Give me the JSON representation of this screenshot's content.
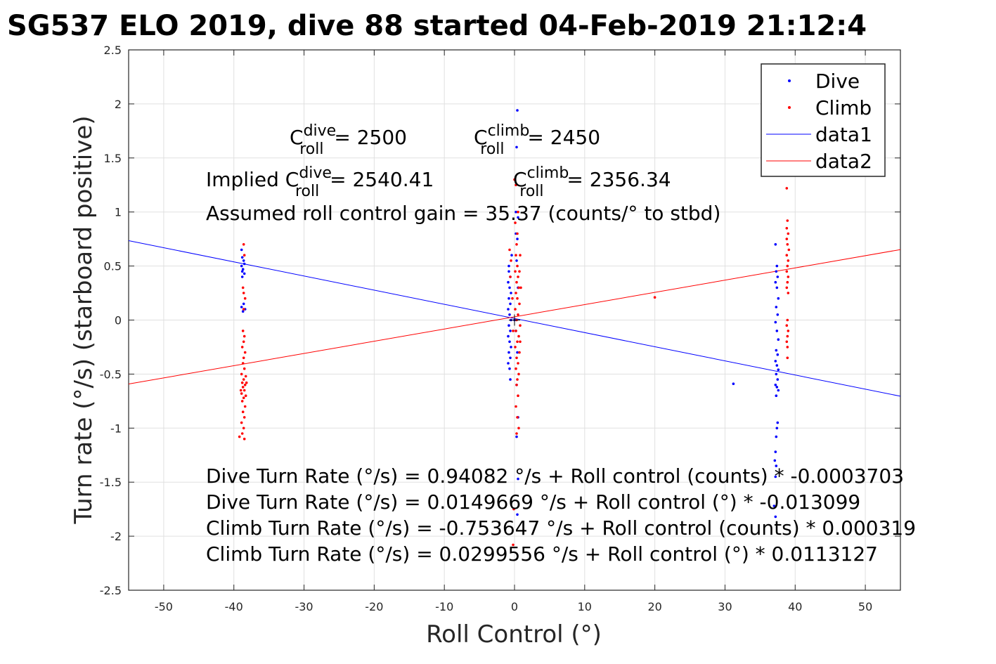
{
  "title": "SG537 ELO 2019, dive 88 started 04-Feb-2019 21:12:4",
  "chart_data": {
    "type": "scatter",
    "xlabel": "Roll Control (°)",
    "ylabel": "Turn rate (°/s) (starboard positive)",
    "xlim": [
      -55,
      55
    ],
    "ylim": [
      -2.5,
      2.5
    ],
    "xticks": [
      "-50",
      "-40",
      "-30",
      "-20",
      "-10",
      "0",
      "10",
      "20",
      "30",
      "40",
      "50"
    ],
    "xtick_values": [
      -50,
      -40,
      -30,
      -20,
      -10,
      0,
      10,
      20,
      30,
      40,
      50
    ],
    "yticks": [
      "2.5",
      "2",
      "1.5",
      "1",
      "0.5",
      "0",
      "-0.5",
      "-1",
      "-1.5",
      "-2",
      "-2.5"
    ],
    "ytick_values": [
      2.5,
      2,
      1.5,
      1,
      0.5,
      0,
      -0.5,
      -1,
      -1.5,
      -2,
      -2.5
    ],
    "grid": true,
    "legend_position": "top-right",
    "legend": [
      "Dive",
      "Climb",
      "data1",
      "data2"
    ],
    "series": [
      {
        "name": "Dive",
        "color": "#0000ff",
        "kind": "points",
        "points": [
          [
            -38.9,
            0.65
          ],
          [
            -38.8,
            0.58
          ],
          [
            -38.6,
            0.55
          ],
          [
            -38.9,
            0.5
          ],
          [
            -38.7,
            0.47
          ],
          [
            -38.5,
            0.43
          ],
          [
            -38.8,
            0.4
          ],
          [
            -38.6,
            0.15
          ],
          [
            -38.9,
            0.12
          ],
          [
            -38.4,
            0.1
          ],
          [
            -38.7,
            0.08
          ],
          [
            -38.5,
            0.52
          ],
          [
            -38.8,
            0.45
          ],
          [
            -0.8,
            0.45
          ],
          [
            -0.6,
            0.4
          ],
          [
            -0.9,
            0.35
          ],
          [
            -0.7,
            0.3
          ],
          [
            -0.5,
            0.25
          ],
          [
            -0.8,
            0.2
          ],
          [
            -0.6,
            0.15
          ],
          [
            -0.9,
            0.1
          ],
          [
            -0.7,
            0.05
          ],
          [
            -0.5,
            0.0
          ],
          [
            -0.8,
            -0.05
          ],
          [
            -0.6,
            -0.1
          ],
          [
            -0.9,
            -0.15
          ],
          [
            -0.7,
            -0.2
          ],
          [
            -0.5,
            -0.25
          ],
          [
            -0.8,
            -0.3
          ],
          [
            -0.6,
            -0.35
          ],
          [
            -0.9,
            -0.4
          ],
          [
            -0.7,
            -0.45
          ],
          [
            -0.6,
            -0.55
          ],
          [
            -0.8,
            0.5
          ],
          [
            -0.4,
            0.6
          ],
          [
            0.2,
            0.8
          ],
          [
            0.4,
            0.75
          ],
          [
            0.3,
            0.55
          ],
          [
            0.5,
            0.3
          ],
          [
            0.2,
            -0.1
          ],
          [
            0.4,
            -0.3
          ],
          [
            0.3,
            -0.6
          ],
          [
            0.5,
            -0.9
          ],
          [
            0.4,
            1.94
          ],
          [
            0.3,
            1.6
          ],
          [
            0.2,
            1.0
          ],
          [
            0.5,
            0.95
          ],
          [
            0.3,
            -1.08
          ],
          [
            0.5,
            -1.47
          ],
          [
            0.4,
            -1.8
          ],
          [
            0.0,
            0.0
          ],
          [
            37.2,
            0.7
          ],
          [
            37.4,
            0.5
          ],
          [
            37.3,
            0.45
          ],
          [
            37.5,
            0.4
          ],
          [
            37.2,
            0.35
          ],
          [
            37.4,
            0.3
          ],
          [
            37.6,
            0.2
          ],
          [
            37.3,
            0.12
          ],
          [
            37.5,
            0.05
          ],
          [
            37.2,
            -0.02
          ],
          [
            37.4,
            -0.1
          ],
          [
            37.6,
            -0.18
          ],
          [
            37.3,
            -0.28
          ],
          [
            37.5,
            -0.32
          ],
          [
            37.2,
            -0.38
          ],
          [
            37.4,
            -0.42
          ],
          [
            37.6,
            -0.46
          ],
          [
            37.3,
            -0.5
          ],
          [
            37.5,
            -0.55
          ],
          [
            37.2,
            -0.6
          ],
          [
            37.4,
            -0.62
          ],
          [
            37.6,
            -0.65
          ],
          [
            37.3,
            -0.7
          ],
          [
            37.5,
            -0.95
          ],
          [
            37.4,
            -1.0
          ],
          [
            37.3,
            -1.08
          ],
          [
            37.2,
            -1.22
          ],
          [
            37.1,
            -1.3
          ],
          [
            37.3,
            -1.35
          ],
          [
            37.2,
            -1.45
          ],
          [
            37.0,
            -1.72
          ],
          [
            37.2,
            -1.82
          ],
          [
            31.2,
            -0.59
          ]
        ]
      },
      {
        "name": "Climb",
        "color": "#ff0000",
        "kind": "points",
        "points": [
          [
            -38.6,
            0.7
          ],
          [
            -38.5,
            0.6
          ],
          [
            -38.7,
            0.3
          ],
          [
            -38.6,
            0.25
          ],
          [
            -38.4,
            0.2
          ],
          [
            -38.6,
            0.1
          ],
          [
            -38.7,
            -0.1
          ],
          [
            -38.5,
            -0.15
          ],
          [
            -38.6,
            -0.2
          ],
          [
            -38.8,
            -0.25
          ],
          [
            -38.4,
            -0.3
          ],
          [
            -38.6,
            -0.35
          ],
          [
            -38.7,
            -0.4
          ],
          [
            -38.5,
            -0.45
          ],
          [
            -38.9,
            -0.5
          ],
          [
            -38.3,
            -0.52
          ],
          [
            -38.6,
            -0.55
          ],
          [
            -38.8,
            -0.58
          ],
          [
            -38.4,
            -0.6
          ],
          [
            -38.7,
            -0.62
          ],
          [
            -38.5,
            -0.65
          ],
          [
            -38.9,
            -0.68
          ],
          [
            -38.3,
            -0.7
          ],
          [
            -38.6,
            -0.72
          ],
          [
            -38.8,
            -0.75
          ],
          [
            -38.4,
            -0.8
          ],
          [
            -38.7,
            -0.85
          ],
          [
            -38.5,
            -0.9
          ],
          [
            -38.9,
            -0.95
          ],
          [
            -38.6,
            -1.0
          ],
          [
            -38.8,
            -1.05
          ],
          [
            -38.5,
            -1.1
          ],
          [
            -39.2,
            -1.08
          ],
          [
            -39.0,
            -0.65
          ],
          [
            -38.2,
            -0.58
          ],
          [
            -0.7,
            0.65
          ],
          [
            -0.5,
            0.55
          ],
          [
            -0.6,
            0.4
          ],
          [
            0.0,
            1.3
          ],
          [
            0.2,
            1.25
          ],
          [
            0.1,
            0.9
          ],
          [
            0.3,
            0.7
          ],
          [
            0.2,
            0.6
          ],
          [
            0.4,
            0.5
          ],
          [
            0.1,
            0.45
          ],
          [
            0.5,
            0.4
          ],
          [
            0.3,
            0.35
          ],
          [
            0.6,
            0.3
          ],
          [
            0.2,
            0.25
          ],
          [
            0.4,
            0.2
          ],
          [
            0.7,
            0.15
          ],
          [
            0.1,
            0.1
          ],
          [
            0.5,
            0.05
          ],
          [
            0.3,
            0.0
          ],
          [
            0.8,
            -0.05
          ],
          [
            0.2,
            -0.1
          ],
          [
            0.6,
            -0.15
          ],
          [
            0.4,
            -0.2
          ],
          [
            0.1,
            -0.25
          ],
          [
            0.7,
            -0.3
          ],
          [
            0.3,
            -0.35
          ],
          [
            0.5,
            -0.4
          ],
          [
            0.2,
            -0.45
          ],
          [
            0.6,
            -0.5
          ],
          [
            0.4,
            -0.55
          ],
          [
            0.3,
            -0.6
          ],
          [
            0.5,
            -0.7
          ],
          [
            0.2,
            -0.8
          ],
          [
            0.4,
            -0.9
          ],
          [
            0.6,
            -1.0
          ],
          [
            0.3,
            -1.05
          ],
          [
            0.5,
            1.0
          ],
          [
            0.4,
            0.8
          ],
          [
            0.7,
            0.45
          ],
          [
            -0.3,
            0.2
          ],
          [
            -0.2,
            -0.1
          ],
          [
            -0.1,
            -1.75
          ],
          [
            -0.2,
            -2.08
          ],
          [
            0.8,
            0.6
          ],
          [
            0.9,
            0.3
          ],
          [
            0.8,
            -0.2
          ],
          [
            38.8,
            1.22
          ],
          [
            38.9,
            0.92
          ],
          [
            38.8,
            0.85
          ],
          [
            39.0,
            0.8
          ],
          [
            38.8,
            0.75
          ],
          [
            38.9,
            0.7
          ],
          [
            39.1,
            0.65
          ],
          [
            38.8,
            0.6
          ],
          [
            39.0,
            0.55
          ],
          [
            38.9,
            0.5
          ],
          [
            38.8,
            0.45
          ],
          [
            39.0,
            0.4
          ],
          [
            38.9,
            0.35
          ],
          [
            38.8,
            0.3
          ],
          [
            39.0,
            0.25
          ],
          [
            38.9,
            0.0
          ],
          [
            38.8,
            -0.05
          ],
          [
            39.0,
            -0.1
          ],
          [
            38.9,
            -0.15
          ],
          [
            38.8,
            -0.2
          ],
          [
            38.9,
            -0.25
          ],
          [
            38.9,
            -0.35
          ],
          [
            20.0,
            0.21
          ]
        ]
      },
      {
        "name": "data1",
        "color": "#0000ff",
        "kind": "line",
        "x": [
          -55,
          55
        ],
        "y": [
          0.735,
          -0.705
        ]
      },
      {
        "name": "data2",
        "color": "#ff0000",
        "kind": "line",
        "x": [
          -55,
          55
        ],
        "y": [
          -0.592,
          0.652
        ]
      }
    ]
  },
  "annotations": {
    "c_roll_dive": {
      "base": "C",
      "sup": "dive",
      "sub": "roll",
      "value": " = 2500"
    },
    "c_roll_climb": {
      "base": "C",
      "sup": "climb",
      "sub": "roll",
      "value": " = 2450"
    },
    "implied_dive": {
      "prefix": "Implied C",
      "sup": "dive",
      "sub": "roll",
      "value": " = 2540.41"
    },
    "implied_climb": {
      "base": "C",
      "sup": "climb",
      "sub": "roll",
      "value": " = 2356.34"
    },
    "gain": "Assumed roll control gain = 35.37 (counts/° to stbd)",
    "fit_lines": [
      "Dive Turn Rate (°/s) = 0.94082 °/s + Roll control (counts) * -0.0003703",
      "Dive Turn Rate (°/s) = 0.0149669 °/s + Roll control (°) * -0.013099",
      "Climb Turn Rate (°/s) = -0.753647 °/s + Roll control (counts) * 0.000319",
      "Climb Turn Rate (°/s) = 0.0299556 °/s + Roll control (°) * 0.0113127"
    ]
  }
}
